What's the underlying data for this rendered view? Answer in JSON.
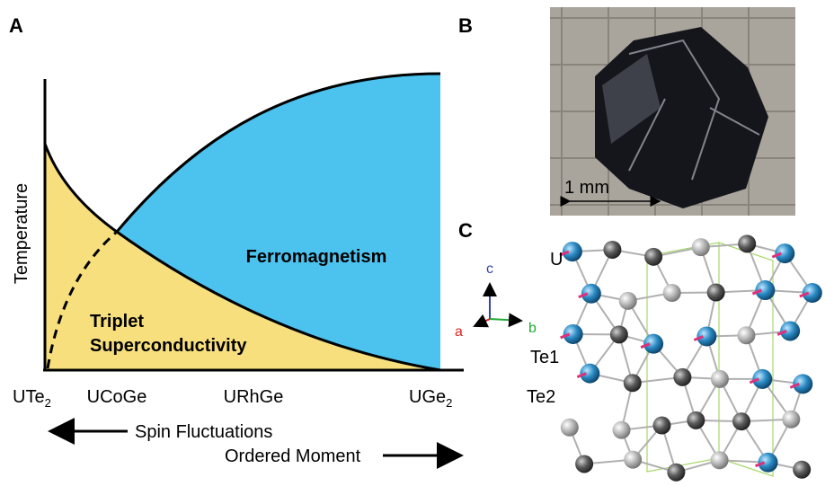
{
  "panels": {
    "a": "A",
    "b": "B",
    "c": "C"
  },
  "phase_diagram": {
    "y_axis_label": "Temperature",
    "regions": {
      "ferromagnetism": "Ferromagnetism",
      "superconductivity": [
        "Triplet",
        "Superconductivity"
      ]
    },
    "compounds": [
      {
        "base": "UTe",
        "sub": "2"
      },
      {
        "base": "UCoGe"
      },
      {
        "base": "URhGe"
      },
      {
        "base": "UGe",
        "sub": "2"
      }
    ],
    "arrows": {
      "left": "Spin Fluctuations",
      "right": "Ordered Moment"
    }
  },
  "photo": {
    "scale_bar": "1 mm"
  },
  "structure": {
    "axes": {
      "c": "c",
      "a": "a",
      "b": "b"
    },
    "atoms": [
      "U",
      "Te1",
      "Te2"
    ]
  }
}
